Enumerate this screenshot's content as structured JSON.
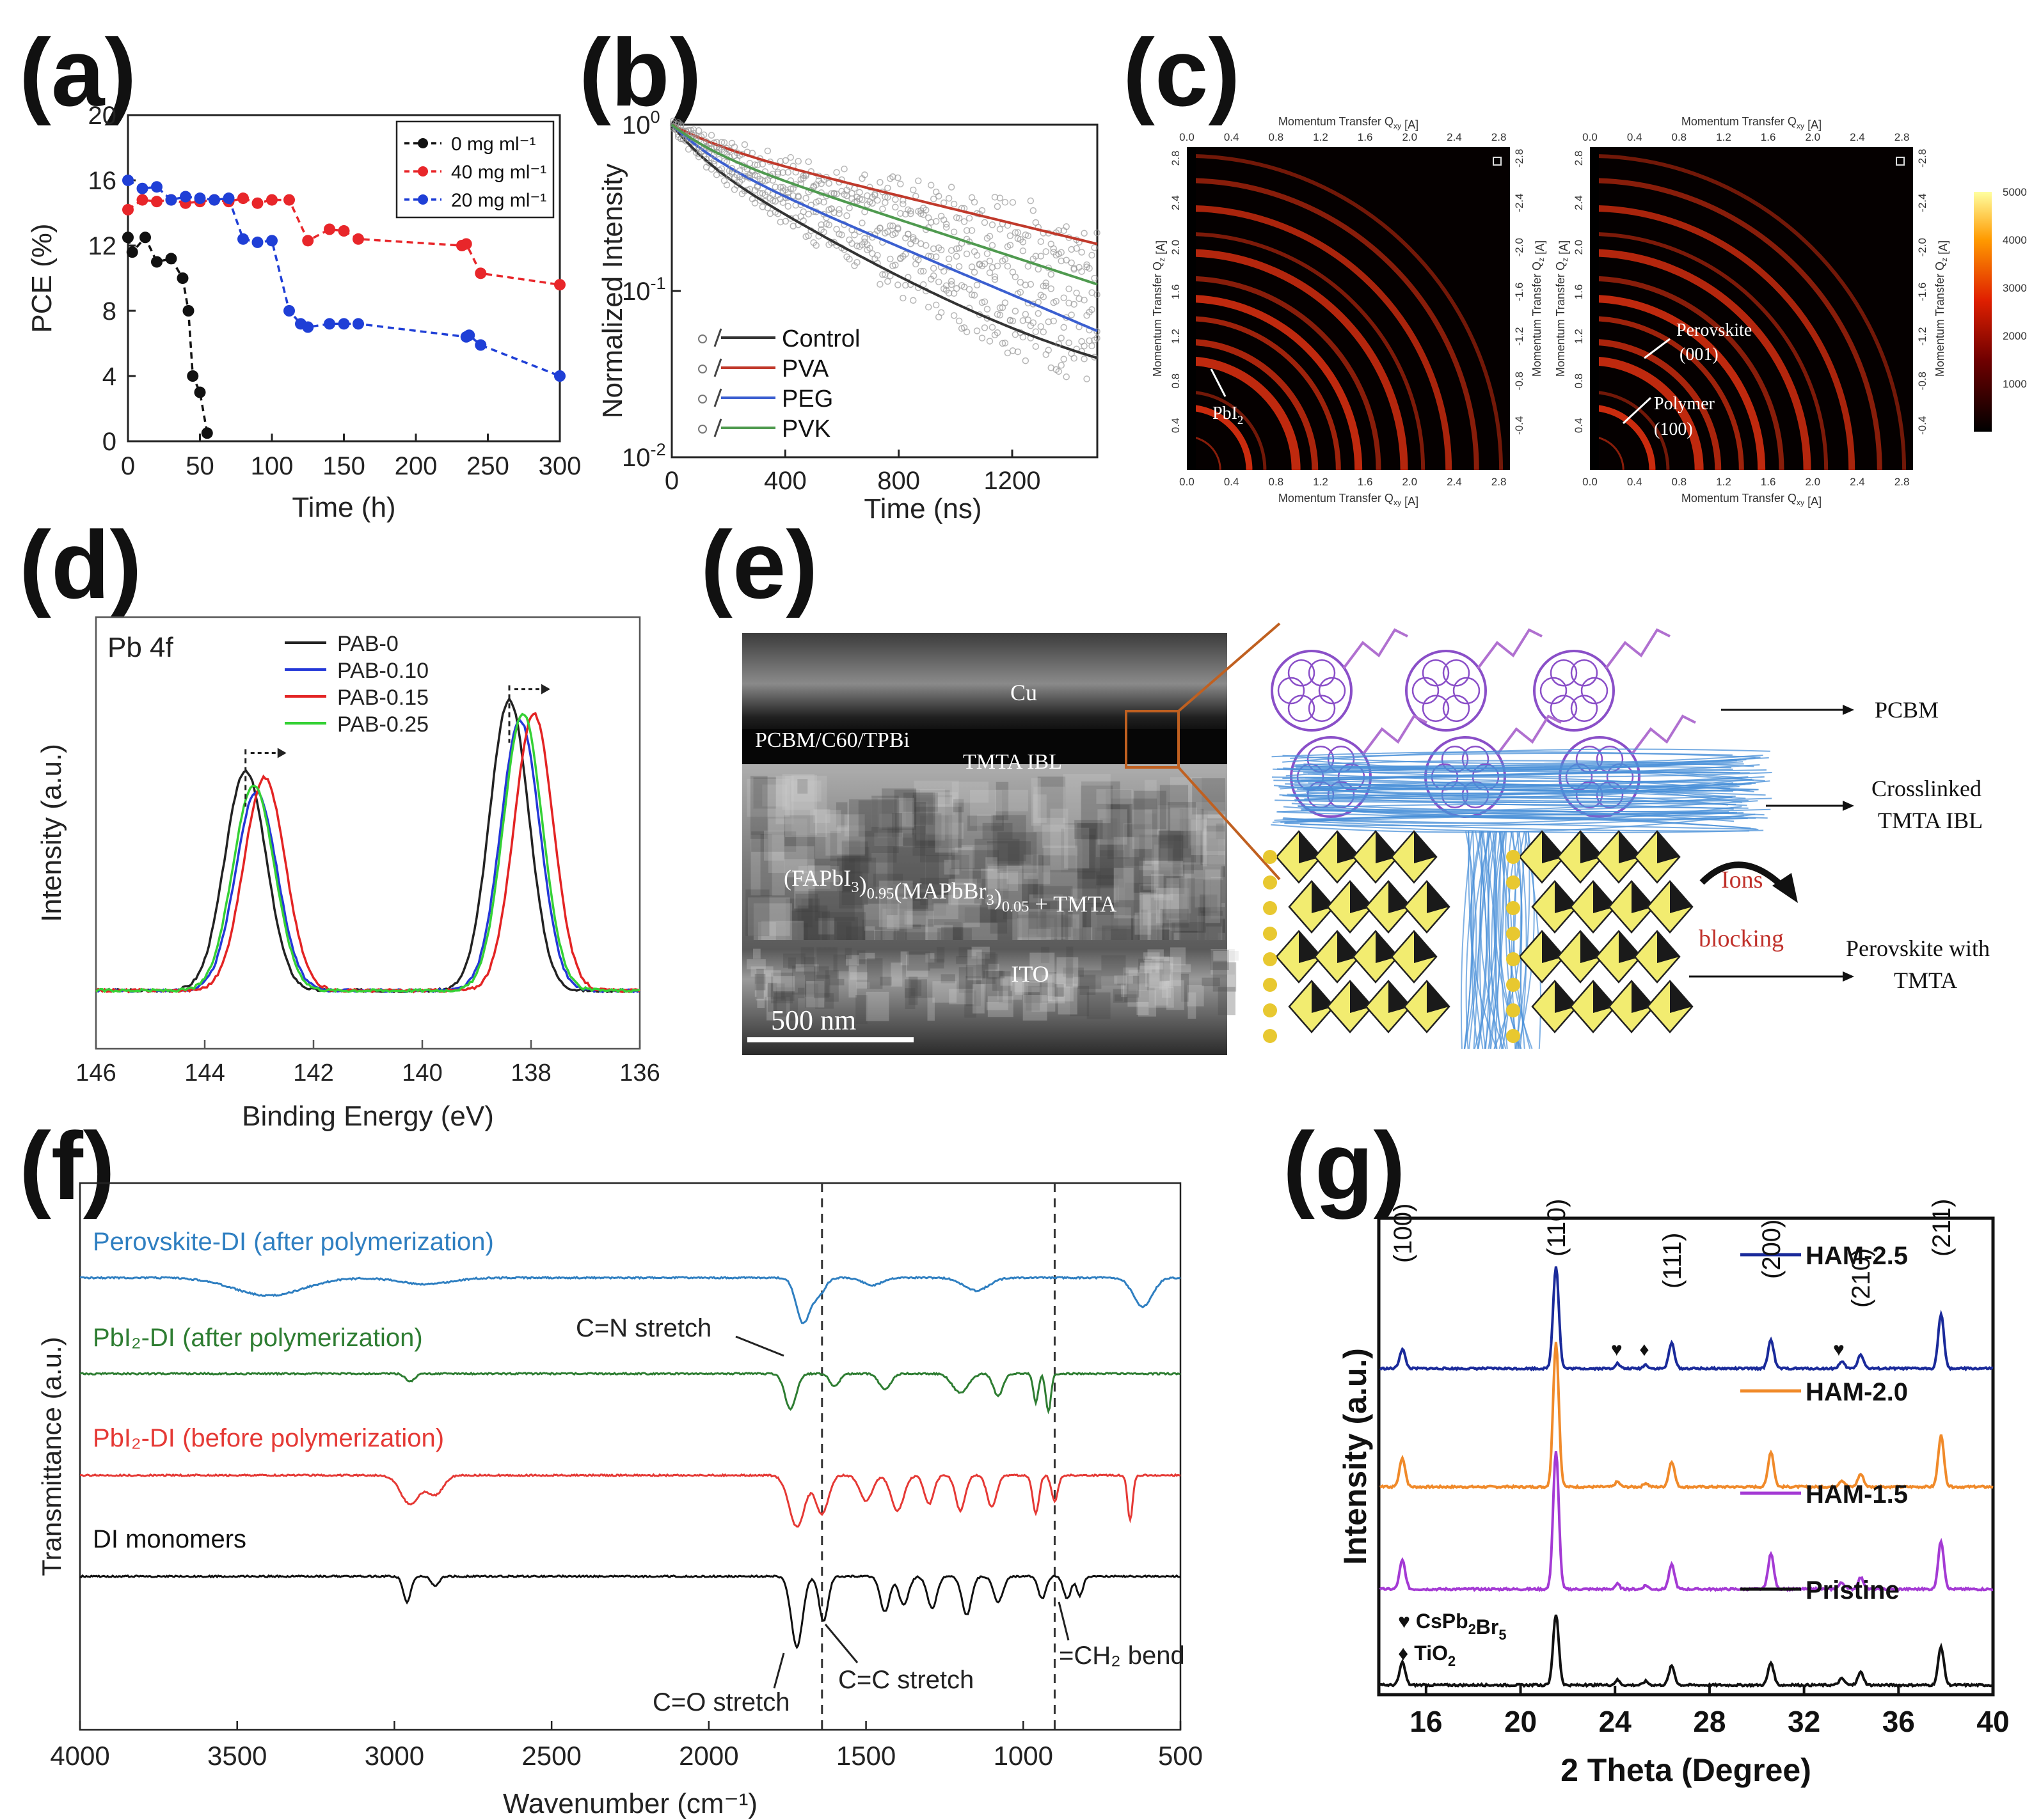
{
  "panel_labels": [
    "(a)",
    "(b)",
    "(c)",
    "(d)",
    "(e)",
    "(f)",
    "(g)"
  ],
  "colors": {
    "black": "#111111",
    "red": "#e8262a",
    "blue": "#1f3fd6",
    "green": "#3aa54a",
    "b_control": "#333333",
    "b_pva": "#c0392b",
    "b_peg": "#3b5fd0",
    "b_pvk": "#4f9a4f",
    "d_pab0": "#222222",
    "d_pab010": "#2438d8",
    "d_pab015": "#e32424",
    "d_pab025": "#35d135",
    "f_blue": "#2f7fc1",
    "f_green": "#2e7d32",
    "f_red": "#e53935",
    "f_black": "#111111",
    "g_navy": "#1a2a9a",
    "g_orange": "#f08a2a",
    "g_purple": "#a43ad4",
    "g_black": "#111111",
    "giwaxs_bg": "#0a0000",
    "giwaxs_ring": "#e03010",
    "sem_bg": "#3a3a3a"
  },
  "chart_data": [
    {
      "panel": "(a)",
      "type": "line",
      "xlabel": "Time (h)",
      "ylabel": "PCE (%)",
      "xlim": [
        0,
        300
      ],
      "ylim": [
        0,
        20
      ],
      "xticks": [
        "0",
        "50",
        "100",
        "150",
        "200",
        "250",
        "300"
      ],
      "yticks": [
        "0",
        "4",
        "8",
        "12",
        "16",
        "20"
      ],
      "legend_position": "top-right",
      "series": [
        {
          "name": "0 mg ml⁻¹",
          "color": "black",
          "x": [
            0,
            3,
            12,
            20,
            30,
            38,
            42,
            45,
            50,
            55
          ],
          "y": [
            12.5,
            11.6,
            12.5,
            11.0,
            11.2,
            10.0,
            8.0,
            4.0,
            3.0,
            0.5
          ]
        },
        {
          "name": "40 mg ml⁻¹",
          "color": "red",
          "x": [
            0,
            10,
            20,
            30,
            40,
            50,
            60,
            70,
            80,
            90,
            100,
            112,
            125,
            140,
            150,
            160,
            232,
            235,
            245,
            300
          ],
          "y": [
            14.2,
            14.8,
            14.7,
            14.8,
            14.6,
            14.7,
            14.8,
            14.7,
            14.9,
            14.6,
            14.8,
            14.8,
            12.3,
            13.0,
            12.9,
            12.4,
            12.0,
            12.1,
            10.3,
            9.6
          ]
        },
        {
          "name": "20 mg ml⁻¹",
          "color": "blue",
          "x": [
            0,
            10,
            20,
            30,
            40,
            50,
            60,
            70,
            80,
            90,
            100,
            112,
            120,
            125,
            140,
            150,
            160,
            235,
            237,
            245,
            300
          ],
          "y": [
            16.0,
            15.5,
            15.6,
            14.8,
            15.0,
            14.9,
            14.8,
            14.9,
            12.4,
            12.2,
            12.3,
            8.0,
            7.2,
            7.0,
            7.2,
            7.2,
            7.2,
            6.4,
            6.5,
            5.9,
            4.0
          ]
        }
      ]
    },
    {
      "panel": "(b)",
      "type": "scatter",
      "xlabel": "Time (ns)",
      "ylabel": "Normalized Intensity",
      "xlim": [
        0,
        1500
      ],
      "ylim_log": [
        0.01,
        1
      ],
      "xticks": [
        "0",
        "400",
        "800",
        "1200"
      ],
      "ylabel_ticks": [
        {
          "base": "10",
          "exp": "0"
        },
        {
          "base": "10",
          "exp": "-1"
        },
        {
          "base": "10",
          "exp": "-2"
        }
      ],
      "legend_position": "bottom-left",
      "series": [
        {
          "name": "Control",
          "color": "b_control",
          "tau1": 90,
          "a1": 0.3,
          "tau2": 420,
          "a2": 0.7,
          "baseline": 0.02
        },
        {
          "name": "PVA",
          "color": "b_pva",
          "tau1": 150,
          "a1": 0.2,
          "tau2": 1050,
          "a2": 0.8,
          "baseline": 0
        },
        {
          "name": "PEG",
          "color": "b_peg",
          "tau1": 120,
          "a1": 0.3,
          "tau2": 600,
          "a2": 0.7,
          "baseline": 0
        },
        {
          "name": "PVK",
          "color": "b_pvk",
          "tau1": 120,
          "a1": 0.25,
          "tau2": 780,
          "a2": 0.75,
          "baseline": 0
        }
      ]
    },
    {
      "panel": "(c)",
      "type": "heatmap",
      "x_axis_label": "Momentum Transfer Q",
      "x_sub": "xy",
      "unit": " [A]",
      "y_axis_label": "Momentum Transfer Q",
      "y_sub": "z",
      "xticks": [
        "0.0",
        "0.4",
        "0.8",
        "1.2",
        "1.6",
        "2.0",
        "2.4",
        "2.8"
      ],
      "yticks": [
        "2.8",
        "2.4",
        "2.0",
        "1.6",
        "1.2",
        "0.8",
        "0.4"
      ],
      "yticks_right": [
        "-2.8",
        "-2.4",
        "-2.0",
        "-1.6",
        "-1.2",
        "-0.8",
        "-0.4"
      ],
      "colorbar_ticks": [
        "5000",
        "4000",
        "3000",
        "2000",
        "1000"
      ],
      "left_annotation": "PbI",
      "left_annotation_sub": "2",
      "right_annotations": [
        "Perovskite",
        "(001)",
        "Polymer",
        "(100)"
      ]
    },
    {
      "panel": "(d)",
      "type": "line",
      "title": "Pb 4f",
      "xlabel": "Binding Energy (eV)",
      "ylabel": "Intensity (a.u.)",
      "xlim": [
        146,
        136
      ],
      "xticks": [
        "146",
        "144",
        "142",
        "140",
        "138",
        "136"
      ],
      "legend_position": "top-center",
      "series": [
        {
          "name": "PAB-0",
          "color": "d_pab0",
          "peak1": 143.25,
          "peak2": 138.4,
          "h1": 0.62,
          "h2": 0.82
        },
        {
          "name": "PAB-0.10",
          "color": "d_pab010",
          "peak1": 143.05,
          "peak2": 138.2,
          "h1": 0.56,
          "h2": 0.76
        },
        {
          "name": "PAB-0.15",
          "color": "d_pab015",
          "peak1": 142.9,
          "peak2": 137.95,
          "h1": 0.6,
          "h2": 0.78
        },
        {
          "name": "PAB-0.25",
          "color": "d_pab025",
          "peak1": 143.1,
          "peak2": 138.15,
          "h1": 0.58,
          "h2": 0.78
        }
      ]
    },
    {
      "panel": "(e)",
      "type": "other",
      "sem_labels": [
        "Cu",
        "PCBM/C60/TPBi",
        "TMTA IBL",
        "ITO",
        "500 nm"
      ],
      "sem_formula": {
        "a": "(FAPbI",
        "a_sub": "3",
        "b": ")",
        "b_sub": "0.95",
        "c": "(MAPbBr",
        "c_sub": "3",
        "d": ")",
        "d_sub": "0.05",
        "e": " + TMTA"
      },
      "schematic_labels": [
        "PCBM",
        "Crosslinked",
        "TMTA IBL",
        "Ions",
        "blocking",
        "Perovskite with",
        "TMTA"
      ]
    },
    {
      "panel": "(f)",
      "type": "line",
      "xlabel": "Wavenumber (cm⁻¹)",
      "ylabel": "Transmittance (a.u.)",
      "xlim": [
        4000,
        500
      ],
      "xticks": [
        "4000",
        "3500",
        "3000",
        "2500",
        "2000",
        "1500",
        "1000",
        "500"
      ],
      "series": [
        {
          "name": "Perovskite-DI (after polymerization)",
          "color": "f_blue"
        },
        {
          "name": "PbI₂-DI (after polymerization)",
          "color": "f_green"
        },
        {
          "name": "PbI₂-DI (before polymerization)",
          "color": "f_red"
        },
        {
          "name": "DI monomers",
          "color": "f_black"
        }
      ],
      "annotations": [
        "C=N stretch",
        "C=O stretch",
        "C=C stretch",
        "=CH₂ bend"
      ]
    },
    {
      "panel": "(g)",
      "type": "line",
      "xlabel": "2 Theta (Degree)",
      "ylabel": "Intensity (a.u.)",
      "xlim": [
        14,
        40
      ],
      "xticks": [
        "16",
        "20",
        "24",
        "28",
        "32",
        "36",
        "40"
      ],
      "peak_labels": [
        "(100)",
        "(110)",
        "(111)",
        "(200)",
        "(210)",
        "(211)"
      ],
      "peak_positions": [
        15.0,
        21.5,
        26.4,
        30.6,
        34.4,
        37.8
      ],
      "impurity_legend": [
        {
          "symbol": "♥",
          "text": "CsPb",
          "s1": "2",
          "t2": "Br",
          "s2": "5"
        },
        {
          "symbol": "♦",
          "text": "TiO",
          "s1": "2",
          "t2": "",
          "s2": ""
        }
      ],
      "series": [
        {
          "name": "HAM-2.5",
          "color": "g_navy"
        },
        {
          "name": "HAM-2.0",
          "color": "g_orange"
        },
        {
          "name": "HAM-1.5",
          "color": "g_purple"
        },
        {
          "name": "Pristine",
          "color": "g_black"
        }
      ]
    }
  ]
}
